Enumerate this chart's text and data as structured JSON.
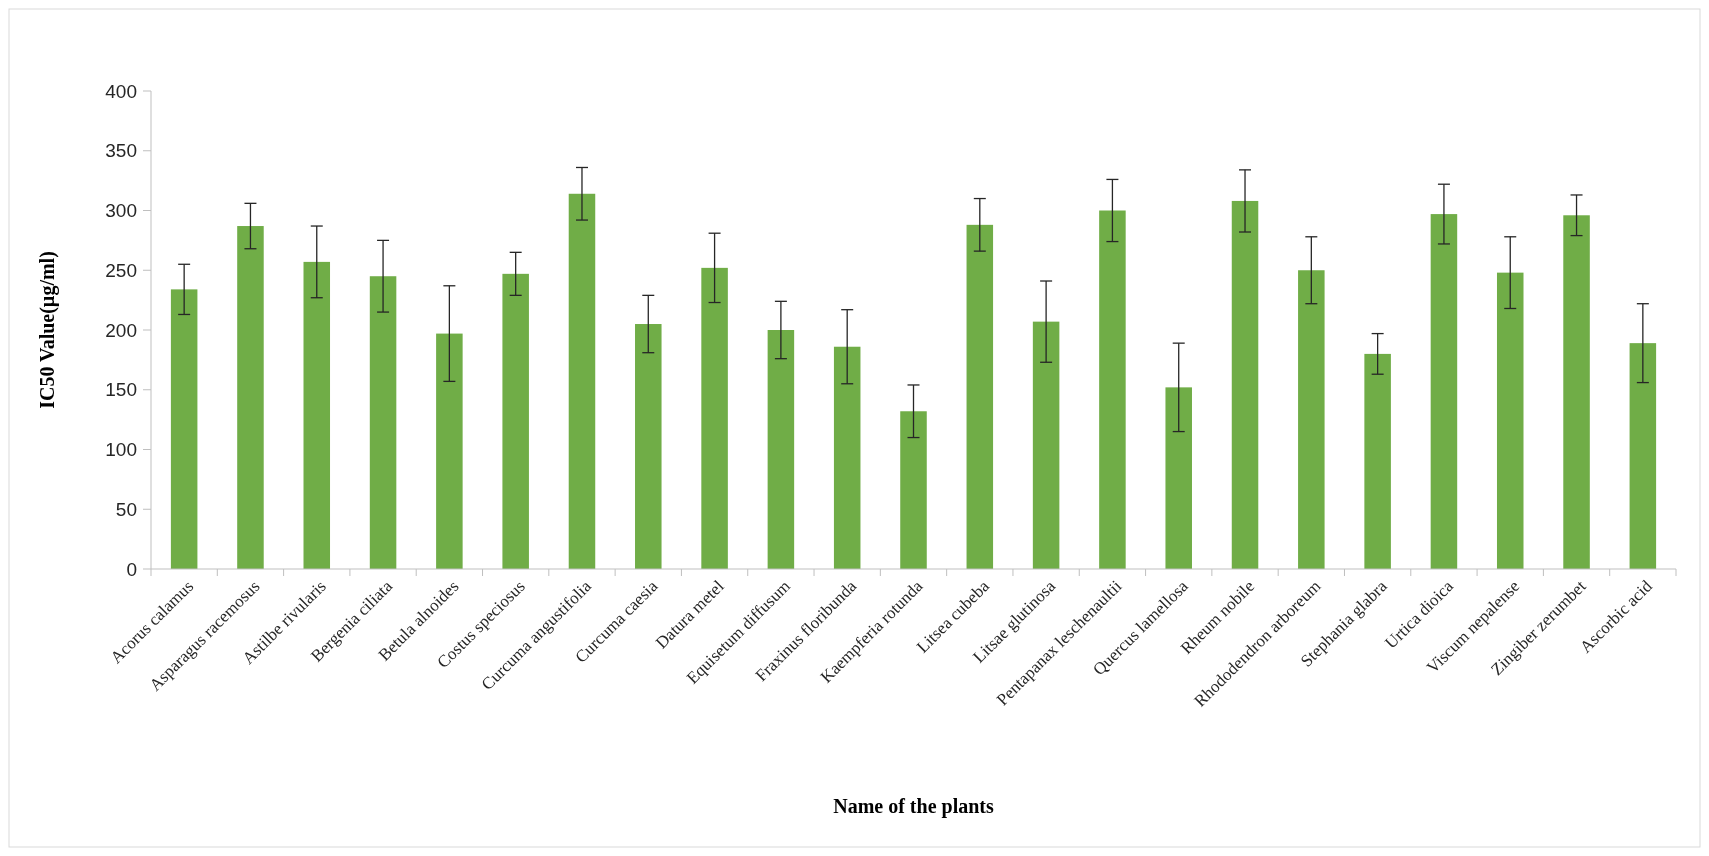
{
  "chart_data": {
    "type": "bar",
    "xlabel": "Name of the plants",
    "ylabel": "IC50 Value(µg/ml)",
    "categories": [
      "Acorus calamus",
      "Asparagus racemosus",
      "Astilbe rivularis",
      "Bergenia ciliata",
      "Betula alnoides",
      "Costus speciosus",
      "Curcuma angustifolia",
      "Curcuma caesia",
      "Datura metel",
      "Equisetum diffusum",
      "Fraxinus floribunda",
      "Kaempferia rotunda",
      "Litsea cubeba",
      "Litsae glutinosa",
      "Pentapanax leschenaultii",
      "Quercus lamellosa",
      "Rheum nobile",
      "Rhododendron arboreum",
      "Stephania glabra",
      "Urtica dioica",
      "Viscum nepalense",
      "Zingiber zerumbet",
      "Ascorbic acid"
    ],
    "values": [
      234,
      287,
      257,
      245,
      197,
      247,
      314,
      205,
      252,
      200,
      186,
      132,
      288,
      207,
      300,
      152,
      308,
      250,
      180,
      297,
      248,
      296,
      189
    ],
    "errors": [
      21,
      19,
      30,
      30,
      40,
      18,
      22,
      24,
      29,
      24,
      31,
      22,
      22,
      34,
      26,
      37,
      26,
      28,
      17,
      25,
      30,
      17,
      33
    ],
    "color": "#70ad47",
    "ylim": [
      0,
      400
    ],
    "yticks": [
      0,
      50,
      100,
      150,
      200,
      250,
      300,
      350,
      400
    ],
    "grid": false
  }
}
